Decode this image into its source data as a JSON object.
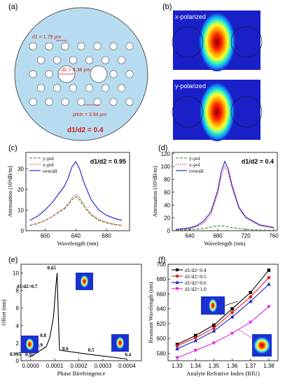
{
  "panel_a": {
    "letter": "(a)",
    "d1": "d1 = 1.75 μm",
    "d2": "d2 = 4.38 μm",
    "pitch": "pitch = 3.94 μm",
    "ratio": "d1/d2 = 0.4",
    "colors": {
      "fiber": "#b8dcef",
      "label": "#d21f1f"
    }
  },
  "panel_b": {
    "letter": "(b)",
    "top_label": "x-polarized",
    "bottom_label": "y-polarized"
  },
  "chart_data": [
    {
      "panel": "(c)",
      "type": "line",
      "annotation": "d1/d2 = 0.95",
      "xlabel": "Wavelength (nm)",
      "ylabel": "Attenuation (10³dB/m)",
      "xlim": [
        575,
        710
      ],
      "ylim": [
        0,
        38
      ],
      "xticks": [
        600,
        640,
        680
      ],
      "yticks": [
        0,
        10,
        20,
        30
      ],
      "legend": "top-left",
      "series": [
        {
          "name": "y-pol",
          "color": "#2e8b2e",
          "style": "dash",
          "x": [
            580,
            590,
            600,
            610,
            620,
            625,
            630,
            635,
            640,
            645,
            650,
            660,
            670,
            680,
            690,
            700
          ],
          "y": [
            2.5,
            3.5,
            5,
            7,
            9.5,
            10.5,
            12.5,
            15,
            16.5,
            15,
            12,
            7.5,
            5,
            3.8,
            3,
            2.5
          ]
        },
        {
          "name": "x-pol",
          "color": "#e02020",
          "style": "dot",
          "x": [
            580,
            590,
            600,
            610,
            620,
            625,
            630,
            635,
            640,
            645,
            650,
            660,
            670,
            680,
            690,
            700
          ],
          "y": [
            2.5,
            3.5,
            5,
            7,
            9.7,
            11,
            13,
            16,
            17.5,
            16,
            13,
            8,
            5.5,
            4,
            3.2,
            2.6
          ]
        },
        {
          "name": "overall",
          "color": "#1a1acc",
          "style": "solid",
          "x": [
            580,
            590,
            600,
            610,
            620,
            625,
            630,
            635,
            640,
            645,
            650,
            660,
            670,
            680,
            690,
            700
          ],
          "y": [
            5,
            7,
            10,
            14,
            19,
            21.5,
            25.5,
            31,
            33.5,
            30,
            24,
            15,
            10,
            7.5,
            6,
            5
          ]
        }
      ]
    },
    {
      "panel": "(d)",
      "type": "line",
      "annotation": "d1/d2 = 0.4",
      "xlabel": "Wavelength (nm)",
      "ylabel": "Attenuation (10³dB/m)",
      "xlim": [
        615,
        765
      ],
      "ylim": [
        0,
        122
      ],
      "xticks": [
        640,
        680,
        720,
        760
      ],
      "yticks": [
        0,
        20,
        40,
        60,
        80,
        100,
        120
      ],
      "legend": "top-left",
      "series": [
        {
          "name": "y-pol",
          "color": "#2e8b2e",
          "style": "dash",
          "x": [
            620,
            640,
            660,
            670,
            680,
            690,
            700,
            720,
            740,
            760
          ],
          "y": [
            0.5,
            1.5,
            3.5,
            5.5,
            7.5,
            7,
            5,
            2,
            1,
            0.5
          ]
        },
        {
          "name": "x-pol",
          "color": "#e02020",
          "style": "dot",
          "x": [
            620,
            640,
            650,
            660,
            670,
            680,
            685,
            690,
            695,
            700,
            710,
            720,
            740,
            760
          ],
          "y": [
            1,
            3,
            6,
            12,
            25,
            58,
            85,
            100,
            90,
            68,
            35,
            20,
            8,
            4
          ]
        },
        {
          "name": "overall",
          "color": "#1a1acc",
          "style": "solid",
          "x": [
            620,
            640,
            650,
            660,
            670,
            680,
            685,
            690,
            695,
            700,
            710,
            720,
            740,
            760
          ],
          "y": [
            2,
            4.5,
            8,
            15,
            29,
            63,
            92,
            108,
            96,
            72,
            37,
            21,
            9,
            5
          ]
        }
      ]
    },
    {
      "panel": "(e)",
      "type": "line",
      "xlabel": "Phase Birefringence",
      "ylabel": "Offset (nm)",
      "xlim": [
        -4e-05,
        0.00046
      ],
      "ylim": [
        0,
        11
      ],
      "xticks": [
        "0.0000",
        "0.0001",
        "0.0002",
        "0.0003",
        "0.0004"
      ],
      "xtick_values": [
        0,
        0.0001,
        0.0002,
        0.0003,
        0.0004
      ],
      "yticks": [
        0,
        2,
        4,
        6,
        8,
        10
      ],
      "series": [
        {
          "name": "",
          "color": "#000000",
          "style": "solid",
          "x": [
            -5e-06,
            3e-05,
            6.5e-05,
            8e-05,
            9.5e-05,
            0.000105,
            0.00011,
            0.000115,
            0.00012,
            0.00025,
            0.0004
          ],
          "y": [
            0.4,
            1.0,
            1.6,
            2.7,
            5.0,
            8.6,
            10.0,
            5.0,
            1.2,
            0.7,
            0.2
          ]
        }
      ],
      "point_labels": [
        {
          "label": "0.995",
          "x": -5e-06,
          "y": 0.4
        },
        {
          "label": "0.95",
          "x": 3e-05,
          "y": 1.0
        },
        {
          "label": "0.9",
          "x": 6.5e-05,
          "y": 1.6
        },
        {
          "label": "0.8",
          "x": 8e-05,
          "y": 2.7
        },
        {
          "label": "d1/d2=0.7",
          "x": 0.000105,
          "y": 8.6
        },
        {
          "label": "0.65",
          "x": 0.00011,
          "y": 10.0
        },
        {
          "label": "0.6",
          "x": 0.00012,
          "y": 1.2
        },
        {
          "label": "0.5",
          "x": 0.00025,
          "y": 0.7
        },
        {
          "label": "0.4",
          "x": 0.0004,
          "y": 0.2
        }
      ]
    },
    {
      "panel": "(f)",
      "type": "line",
      "xlabel": "Analyte Refrative Index (RIU)",
      "ylabel": "Resonant Wavelength (nm)",
      "xlim": [
        1.325,
        1.385
      ],
      "ylim": [
        570,
        700
      ],
      "xticks": [
        "1.33",
        "1.34",
        "1.35",
        "1.36",
        "1.37",
        "1.38"
      ],
      "xtick_values": [
        1.33,
        1.34,
        1.35,
        1.36,
        1.37,
        1.38
      ],
      "yticks": [
        580,
        600,
        620,
        640,
        660,
        680,
        700
      ],
      "legend": "top-left",
      "series": [
        {
          "name": "d1/d2=0.4",
          "color": "#000000",
          "marker": "square",
          "x": [
            1.33,
            1.34,
            1.35,
            1.36,
            1.37,
            1.38
          ],
          "y": [
            592,
            604,
            618,
            640,
            662,
            692
          ]
        },
        {
          "name": "d1/d2=0.5",
          "color": "#e02020",
          "marker": "circle",
          "x": [
            1.33,
            1.34,
            1.35,
            1.36,
            1.37,
            1.38
          ],
          "y": [
            590,
            601,
            614,
            635,
            656,
            682
          ]
        },
        {
          "name": "d1/d2=0.6",
          "color": "#1a1acc",
          "marker": "triangle",
          "x": [
            1.33,
            1.34,
            1.35,
            1.36,
            1.37,
            1.38
          ],
          "y": [
            586,
            597,
            610,
            629,
            650,
            673
          ]
        },
        {
          "name": "d1/d2=1.0",
          "color": "#e020e0",
          "marker": "triangle-down",
          "x": [
            1.33,
            1.34,
            1.35,
            1.36,
            1.37,
            1.38
          ],
          "y": [
            574,
            584,
            594,
            607,
            622,
            643
          ]
        }
      ]
    }
  ]
}
